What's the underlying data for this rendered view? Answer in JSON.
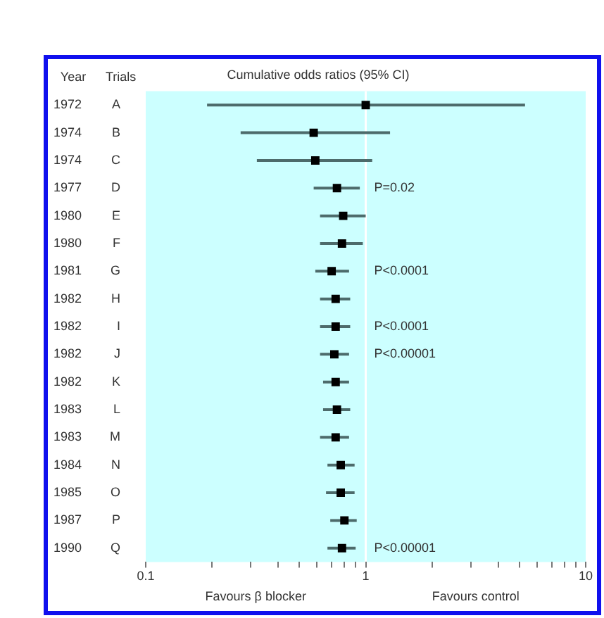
{
  "chart_data": {
    "type": "scatter",
    "orientation": "horizontal",
    "title": "Cumulative odds ratios (95% CI)",
    "categories": [
      "A",
      "B",
      "C",
      "D",
      "E",
      "F",
      "G",
      "H",
      "I",
      "J",
      "K",
      "L",
      "M",
      "N",
      "O",
      "P",
      "Q"
    ],
    "y_categories": [
      "1972",
      "1974",
      "1974",
      "1977",
      "1980",
      "1980",
      "1981",
      "1982",
      "1982",
      "1982",
      "1982",
      "1983",
      "1983",
      "1984",
      "1985",
      "1987",
      "1990"
    ],
    "series": [
      {
        "color": "#000000",
        "values": [
          1.0,
          0.58,
          0.59,
          0.74,
          0.79,
          0.78,
          0.7,
          0.73,
          0.73,
          0.72,
          0.73,
          0.74,
          0.73,
          0.77,
          0.77,
          0.8,
          0.78
        ],
        "errors": [
          [
            0.19,
            5.3
          ],
          [
            0.27,
            1.29
          ],
          [
            0.32,
            1.07
          ],
          [
            0.58,
            0.94
          ],
          [
            0.62,
            1.0
          ],
          [
            0.62,
            0.97
          ],
          [
            0.59,
            0.84
          ],
          [
            0.62,
            0.85
          ],
          [
            0.62,
            0.85
          ],
          [
            0.62,
            0.84
          ],
          [
            0.64,
            0.84
          ],
          [
            0.64,
            0.85
          ],
          [
            0.62,
            0.84
          ],
          [
            0.67,
            0.89
          ],
          [
            0.66,
            0.89
          ],
          [
            0.69,
            0.91
          ],
          [
            0.67,
            0.9
          ]
        ]
      }
    ],
    "marker": "square",
    "log": "x",
    "grid": false,
    "legend": false,
    "xlim": [
      0.1,
      10
    ],
    "xticks": [
      0.1,
      {
        "value": 0.2,
        "label": null
      },
      {
        "value": 0.3,
        "label": null
      },
      {
        "value": 0.4,
        "label": null
      },
      {
        "value": 0.5,
        "label": null
      },
      {
        "value": 0.6,
        "label": null
      },
      {
        "value": 0.7,
        "label": null
      },
      {
        "value": 0.8,
        "label": null
      },
      {
        "value": 0.9,
        "label": null
      },
      1,
      {
        "value": 2,
        "label": null
      },
      {
        "value": 3,
        "label": null
      },
      {
        "value": 4,
        "label": null
      },
      {
        "value": 5,
        "label": null
      },
      {
        "value": 6,
        "label": null
      },
      {
        "value": 7,
        "label": null
      },
      {
        "value": 8,
        "label": null
      },
      {
        "value": 9,
        "label": null
      },
      10
    ],
    "ref_lines": [
      {
        "axis": "x",
        "value": 1,
        "color": "#ffffff"
      }
    ],
    "annotations": [
      "Year",
      "Trials",
      "Favours β blocker",
      "Favours control",
      "P=0.02",
      "P<0.0001",
      "P<0.0001",
      "P<0.00001",
      "P<0.00001"
    ]
  }
}
